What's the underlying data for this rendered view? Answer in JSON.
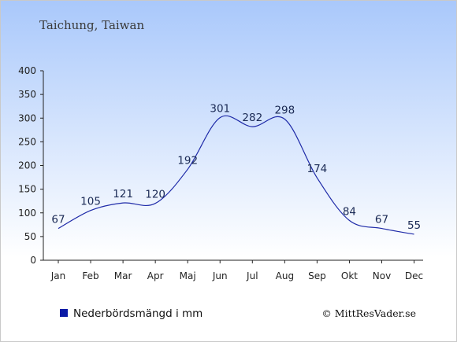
{
  "location": "Taichung, Taiwan",
  "credit": "© MittResVader.se",
  "colors": {
    "background_top": "#a9c8fb",
    "background_bottom": "#ffffff",
    "line": "#1e2aa8",
    "legend_swatch": "#0a1aa6"
  },
  "chart_data": {
    "type": "line",
    "categories": [
      "Jan",
      "Feb",
      "Mar",
      "Apr",
      "Maj",
      "Jun",
      "Jul",
      "Aug",
      "Sep",
      "Okt",
      "Nov",
      "Dec"
    ],
    "series": [
      {
        "name": "Nederbördsmängd i mm",
        "values": [
          67,
          105,
          121,
          120,
          192,
          301,
          282,
          298,
          174,
          84,
          67,
          55
        ]
      }
    ],
    "data_labels": [
      "67",
      "105",
      "121",
      "120",
      "192",
      "301",
      "282",
      "298",
      "174",
      "84",
      "67",
      "55"
    ],
    "yticks": [
      0,
      50,
      100,
      150,
      200,
      250,
      300,
      350,
      400
    ],
    "ylim": [
      0,
      400
    ],
    "legend_position": "bottom-left",
    "grid": false
  }
}
